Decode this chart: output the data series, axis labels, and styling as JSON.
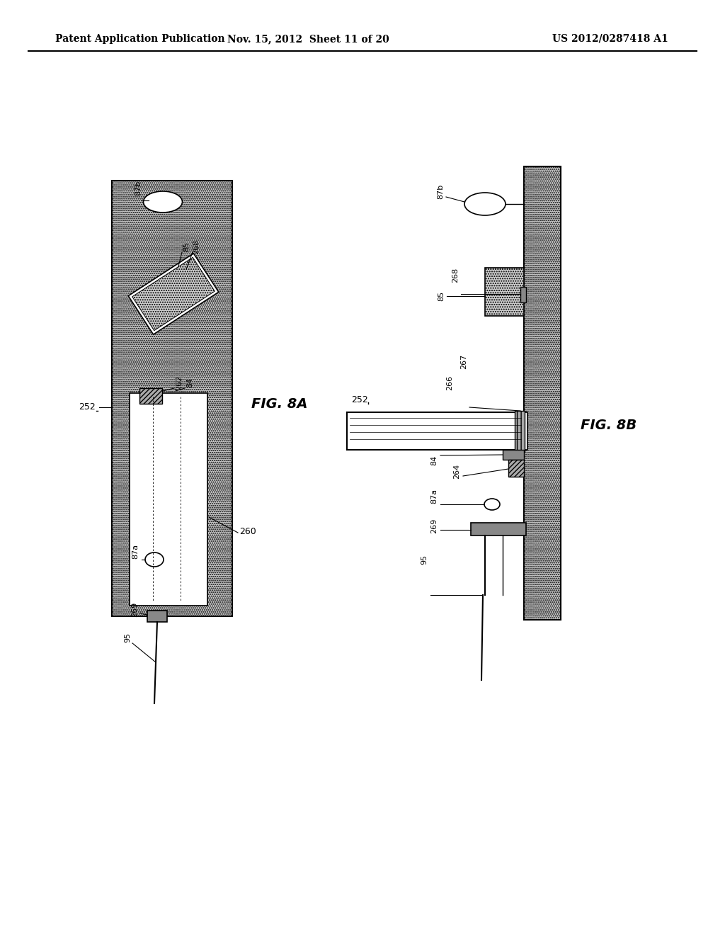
{
  "bg_color": "#ffffff",
  "header_text": "Patent Application Publication",
  "header_date": "Nov. 15, 2012  Sheet 11 of 20",
  "header_patent": "US 2012/0287418 A1",
  "fig8a_label": "FIG. 8A",
  "fig8b_label": "FIG. 8B",
  "stipple_color": "#c8c8c8",
  "wall_color": "#b0b0b0"
}
